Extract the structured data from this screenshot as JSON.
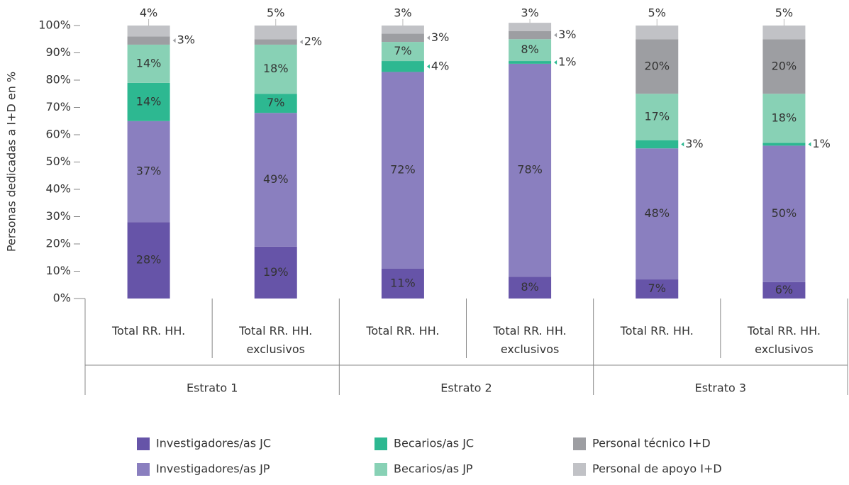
{
  "chart_data": {
    "type": "stacked_bar",
    "y_label": "Personas dedicadas a I+D en %",
    "categories": [
      "Total RR. HH.",
      "Total RR. HH.\nexclusivos",
      "Total RR. HH.",
      "Total RR. HH.\nexclusivos",
      "Total RR. HH.",
      "Total RR. HH.\nexclusivos"
    ],
    "groups": [
      "Estrato 1",
      "Estrato 2",
      "Estrato 3"
    ],
    "ylim": [
      0,
      100
    ],
    "yticks": [
      {
        "value": 0,
        "label": "0%"
      },
      {
        "value": 10,
        "label": "10%"
      },
      {
        "value": 20,
        "label": "20%"
      },
      {
        "value": 30,
        "label": "30%"
      },
      {
        "value": 40,
        "label": "40%"
      },
      {
        "value": 50,
        "label": "50%"
      },
      {
        "value": 60,
        "label": "60%"
      },
      {
        "value": 70,
        "label": "70%"
      },
      {
        "value": 80,
        "label": "80%"
      },
      {
        "value": 90,
        "label": "90%"
      },
      {
        "value": 100,
        "label": "100%"
      }
    ],
    "series": [
      {
        "name": "Investigadores/as JC",
        "color": "#6654a8",
        "values": [
          28,
          19,
          11,
          8,
          7,
          6
        ],
        "value_labels": [
          "28%",
          "19%",
          "11%",
          "8%",
          "7%",
          "6%"
        ]
      },
      {
        "name": "Investigadores/as JP",
        "color": "#8a7fbf",
        "values": [
          37,
          49,
          72,
          78,
          48,
          50
        ],
        "value_labels": [
          "37%",
          "49%",
          "72%",
          "78%",
          "48%",
          "50%"
        ]
      },
      {
        "name": "Becarios/as JC",
        "color": "#2db891",
        "values": [
          14,
          7,
          4,
          1,
          3,
          1
        ],
        "value_labels": [
          "14%",
          "7%",
          "4%",
          "1%",
          "3%",
          "1%"
        ]
      },
      {
        "name": "Becarios/as JP",
        "color": "#88d1b5",
        "values": [
          14,
          18,
          7,
          8,
          17,
          18
        ],
        "value_labels": [
          "14%",
          "18%",
          "7%",
          "8%",
          "17%",
          "18%"
        ]
      },
      {
        "name": "Personal técnico I+D",
        "color": "#9d9ea2",
        "values": [
          3,
          2,
          3,
          3,
          20,
          20
        ],
        "value_labels": [
          "3%",
          "2%",
          "3%",
          "3%",
          "20%",
          "20%"
        ]
      },
      {
        "name": "Personal de apoyo I+D",
        "color": "#c1c2c6",
        "values": [
          4,
          5,
          3,
          3,
          5,
          5
        ],
        "value_labels": [
          "4%",
          "5%",
          "3%",
          "3%",
          "5%",
          "5%"
        ]
      }
    ]
  }
}
